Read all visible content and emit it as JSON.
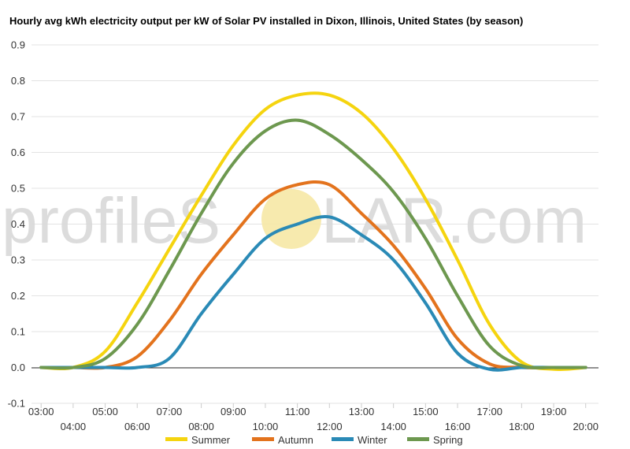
{
  "chart_data": {
    "type": "line",
    "title": "Hourly avg kWh electricity output per kW of Solar PV installed in Dixon, Illinois, United States (by season)",
    "ylim": [
      -0.1,
      0.9
    ],
    "y_ticks": [
      "-0.1",
      "0.0",
      "0.1",
      "0.2",
      "0.3",
      "0.4",
      "0.5",
      "0.6",
      "0.7",
      "0.8",
      "0.9"
    ],
    "x_ticks": [
      "03:00",
      "04:00",
      "05:00",
      "06:00",
      "07:00",
      "08:00",
      "09:00",
      "10:00",
      "11:00",
      "12:00",
      "13:00",
      "14:00",
      "15:00",
      "16:00",
      "17:00",
      "18:00",
      "19:00",
      "20:00"
    ],
    "x_hours": [
      3,
      4,
      5,
      6,
      7,
      8,
      9,
      10,
      11,
      12,
      13,
      14,
      15,
      16,
      17,
      18,
      19,
      20
    ],
    "grid": true,
    "legend_position": "bottom",
    "series": [
      {
        "name": "Summer",
        "color": "#f5d40f",
        "values": [
          0.0,
          0.0,
          0.045,
          0.18,
          0.33,
          0.48,
          0.62,
          0.72,
          0.76,
          0.76,
          0.71,
          0.61,
          0.47,
          0.3,
          0.12,
          0.015,
          -0.005,
          0.0
        ]
      },
      {
        "name": "Autumn",
        "color": "#e3731d",
        "values": [
          0.0,
          0.0,
          0.0,
          0.03,
          0.13,
          0.26,
          0.37,
          0.47,
          0.51,
          0.51,
          0.43,
          0.34,
          0.22,
          0.08,
          0.01,
          0.0,
          0.0,
          0.0
        ]
      },
      {
        "name": "Winter",
        "color": "#2a8ab6",
        "values": [
          0.0,
          0.0,
          0.0,
          0.0,
          0.025,
          0.15,
          0.26,
          0.36,
          0.4,
          0.42,
          0.37,
          0.3,
          0.18,
          0.04,
          -0.005,
          0.0,
          0.0,
          0.0
        ]
      },
      {
        "name": "Spring",
        "color": "#6d984f",
        "values": [
          0.0,
          0.0,
          0.025,
          0.12,
          0.27,
          0.43,
          0.57,
          0.66,
          0.69,
          0.65,
          0.58,
          0.49,
          0.36,
          0.2,
          0.06,
          0.005,
          0.0,
          0.0
        ]
      }
    ]
  },
  "watermark": {
    "left": "profileS",
    "right": "LAR.com",
    "sun_color": "#f7e8a6"
  }
}
